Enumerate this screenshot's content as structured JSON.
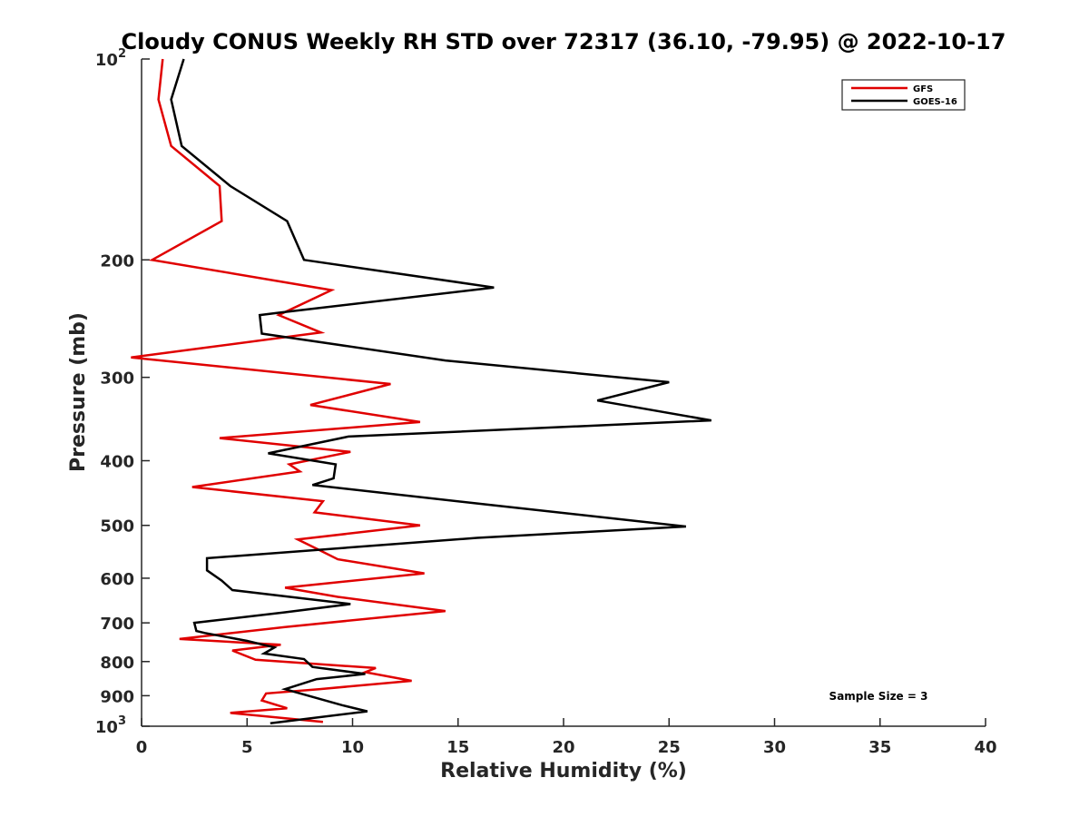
{
  "chart_data": {
    "type": "line",
    "title": "Cloudy CONUS Weekly RH STD over 72317 (36.10, -79.95) @ 2022-10-17",
    "xlabel": "Relative Humidity (%)",
    "ylabel": "Pressure (mb)",
    "xlim": [
      0,
      40
    ],
    "ylim": [
      100,
      1000
    ],
    "y_scale": "log",
    "y_reversed": true,
    "grid": false,
    "legend_position": "top-right",
    "x_ticks": [
      "0",
      "5",
      "10",
      "15",
      "20",
      "25",
      "30",
      "35",
      "40"
    ],
    "x_tick_values": [
      0,
      5,
      10,
      15,
      20,
      25,
      30,
      35,
      40
    ],
    "y_ticks": [
      {
        "value": 100,
        "base": "10",
        "exp": "2"
      },
      {
        "value": 200,
        "label": "200"
      },
      {
        "value": 300,
        "label": "300"
      },
      {
        "value": 400,
        "label": "400"
      },
      {
        "value": 500,
        "label": "500"
      },
      {
        "value": 600,
        "label": "600"
      },
      {
        "value": 700,
        "label": "700"
      },
      {
        "value": 800,
        "label": "800"
      },
      {
        "value": 900,
        "label": "900"
      },
      {
        "value": 1000,
        "base": "10",
        "exp": "3"
      }
    ],
    "annotation": "Sample Size = 3",
    "series": [
      {
        "name": "GFS",
        "color": "#e00000",
        "points": [
          [
            1.0,
            100
          ],
          [
            0.8,
            115
          ],
          [
            1.4,
            135
          ],
          [
            3.7,
            155
          ],
          [
            3.8,
            175
          ],
          [
            0.5,
            200
          ],
          [
            9.0,
            222
          ],
          [
            6.5,
            242
          ],
          [
            8.5,
            257
          ],
          [
            -0.5,
            280
          ],
          [
            11.8,
            307
          ],
          [
            8.0,
            330
          ],
          [
            13.2,
            350
          ],
          [
            3.7,
            370
          ],
          [
            9.9,
            388
          ],
          [
            7.0,
            405
          ],
          [
            7.5,
            415
          ],
          [
            2.4,
            438
          ],
          [
            8.6,
            460
          ],
          [
            8.2,
            478
          ],
          [
            13.2,
            500
          ],
          [
            7.4,
            525
          ],
          [
            8.3,
            542
          ],
          [
            9.3,
            562
          ],
          [
            13.4,
            590
          ],
          [
            6.8,
            620
          ],
          [
            9.3,
            640
          ],
          [
            14.4,
            672
          ],
          [
            6.8,
            710
          ],
          [
            1.8,
            740
          ],
          [
            6.6,
            755
          ],
          [
            4.3,
            770
          ],
          [
            5.4,
            795
          ],
          [
            11.1,
            818
          ],
          [
            10.6,
            830
          ],
          [
            12.8,
            855
          ],
          [
            8.4,
            880
          ],
          [
            5.9,
            893
          ],
          [
            5.7,
            915
          ],
          [
            6.9,
            940
          ],
          [
            4.2,
            955
          ],
          [
            8.6,
            985
          ]
        ]
      },
      {
        "name": "GOES-16",
        "color": "#000000",
        "points": [
          [
            2.0,
            100
          ],
          [
            1.4,
            115
          ],
          [
            1.9,
            135
          ],
          [
            4.2,
            155
          ],
          [
            6.9,
            175
          ],
          [
            7.7,
            200
          ],
          [
            16.7,
            220
          ],
          [
            6.5,
            240
          ],
          [
            5.6,
            242
          ],
          [
            5.7,
            258
          ],
          [
            14.4,
            283
          ],
          [
            25.0,
            305
          ],
          [
            21.6,
            325
          ],
          [
            27.0,
            348
          ],
          [
            9.8,
            368
          ],
          [
            6.0,
            390
          ],
          [
            9.2,
            405
          ],
          [
            9.1,
            425
          ],
          [
            8.1,
            435
          ],
          [
            16.3,
            465
          ],
          [
            25.8,
            502
          ],
          [
            15.9,
            522
          ],
          [
            3.1,
            560
          ],
          [
            3.1,
            584
          ],
          [
            3.8,
            605
          ],
          [
            4.3,
            625
          ],
          [
            9.9,
            656
          ],
          [
            6.8,
            675
          ],
          [
            2.5,
            700
          ],
          [
            2.6,
            720
          ],
          [
            3.0,
            725
          ],
          [
            5.0,
            745
          ],
          [
            6.3,
            762
          ],
          [
            5.8,
            778
          ],
          [
            7.7,
            793
          ],
          [
            8.1,
            815
          ],
          [
            10.6,
            835
          ],
          [
            8.3,
            850
          ],
          [
            6.8,
            880
          ],
          [
            9.5,
            930
          ],
          [
            10.7,
            950
          ],
          [
            6.1,
            990
          ]
        ]
      }
    ]
  }
}
